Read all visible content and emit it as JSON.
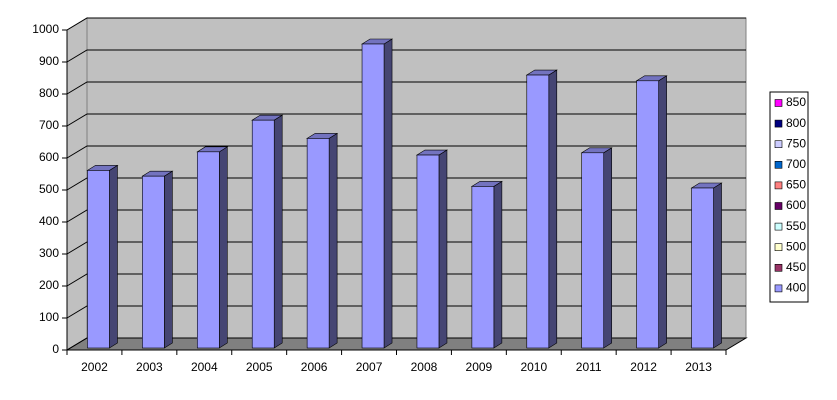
{
  "chart_data": {
    "type": "bar3d",
    "categories": [
      "2002",
      "2003",
      "2004",
      "2005",
      "2006",
      "2007",
      "2008",
      "2009",
      "2010",
      "2011",
      "2012",
      "2013"
    ],
    "series": [
      {
        "name": "400",
        "color": "#9999FF",
        "values": [
          555,
          537,
          613,
          712,
          655,
          950,
          603,
          505,
          853,
          610,
          835,
          500
        ]
      },
      {
        "name": "450",
        "color": "#993366",
        "values": [
          null,
          null,
          null,
          null,
          null,
          null,
          null,
          null,
          null,
          null,
          null,
          null
        ]
      },
      {
        "name": "500",
        "color": "#FFFFCC",
        "values": [
          null,
          null,
          null,
          null,
          null,
          null,
          null,
          null,
          null,
          null,
          null,
          null
        ]
      },
      {
        "name": "550",
        "color": "#CCFFFF",
        "values": [
          null,
          null,
          null,
          null,
          null,
          null,
          null,
          null,
          null,
          null,
          null,
          null
        ]
      },
      {
        "name": "600",
        "color": "#660066",
        "values": [
          null,
          null,
          null,
          null,
          null,
          null,
          null,
          null,
          null,
          null,
          null,
          null
        ]
      },
      {
        "name": "650",
        "color": "#FF8080",
        "values": [
          null,
          null,
          null,
          null,
          null,
          null,
          null,
          null,
          null,
          null,
          null,
          null
        ]
      },
      {
        "name": "700",
        "color": "#0066CC",
        "values": [
          null,
          null,
          null,
          null,
          null,
          null,
          null,
          null,
          null,
          null,
          null,
          null
        ]
      },
      {
        "name": "750",
        "color": "#CCCCFF",
        "values": [
          null,
          null,
          null,
          null,
          null,
          null,
          null,
          null,
          null,
          null,
          null,
          null
        ]
      },
      {
        "name": "800",
        "color": "#000080",
        "values": [
          null,
          null,
          null,
          null,
          null,
          null,
          null,
          null,
          null,
          null,
          null,
          null
        ]
      },
      {
        "name": "850",
        "color": "#FF00FF",
        "values": [
          null,
          null,
          null,
          null,
          null,
          null,
          null,
          null,
          null,
          null,
          null,
          null
        ]
      }
    ],
    "ylim": [
      0,
      1000
    ],
    "yticks": [
      0,
      100,
      200,
      300,
      400,
      500,
      600,
      700,
      800,
      900,
      1000
    ],
    "grid": true,
    "legend": "right"
  }
}
